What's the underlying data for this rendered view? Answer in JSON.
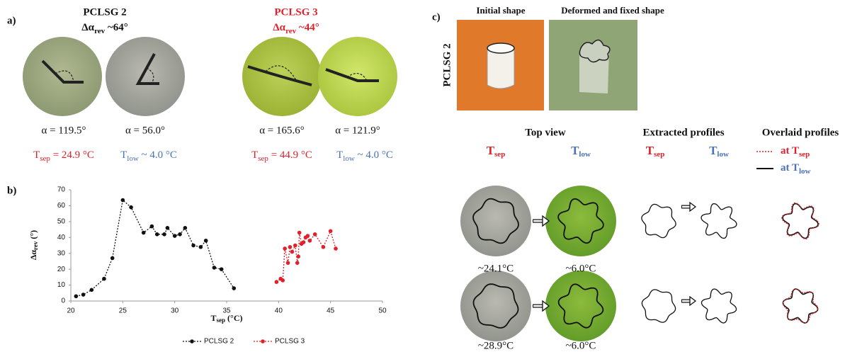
{
  "panel_a": {
    "label": "a)",
    "samples": [
      {
        "name": "PCLSG 2",
        "delta": {
          "main": "Δα",
          "sub": "rev",
          "rest": " ~64°"
        },
        "alpha_sep": "α = 119.5°",
        "alpha_low": "α = 56.0°",
        "t_sep": {
          "main": "T",
          "sub": "sep",
          "rest": " = 24.9 °C"
        },
        "t_low": {
          "main": "T",
          "sub": "low",
          "rest": " ~ 4.0 °C"
        }
      },
      {
        "name": "PCLSG 3",
        "delta": {
          "main": "Δα",
          "sub": "rev",
          "rest": " ~44°"
        },
        "alpha_sep": "α = 165.6°",
        "alpha_low": "α =  121.9°",
        "t_sep": {
          "main": "T",
          "sub": "sep",
          "rest": " = 44.9 °C"
        },
        "t_low": {
          "main": "T",
          "sub": "low",
          "rest": " ~ 4.0 °C"
        }
      }
    ]
  },
  "chart_data": {
    "type": "scatter",
    "label": "b)",
    "x_label": {
      "main": "T",
      "sub": "sep",
      "rest": " (°C)"
    },
    "y_label": {
      "main": "Δα",
      "sub": "rev",
      "rest": " (°)"
    },
    "xlim": [
      20,
      50
    ],
    "xticks": [
      20,
      25,
      30,
      35,
      40,
      45,
      50
    ],
    "ylim": [
      0,
      70
    ],
    "yticks": [
      0,
      10,
      20,
      30,
      40,
      50,
      60,
      70
    ],
    "grid": false,
    "legend": "bottom",
    "series": [
      {
        "name": "PCLSG 2",
        "color": "#111111",
        "x": [
          20.5,
          21.2,
          22,
          23.2,
          24,
          25,
          25.8,
          27,
          27.8,
          28.3,
          29,
          29.3,
          30,
          30.5,
          31,
          31.8,
          32.5,
          33,
          33.8,
          34.5,
          35.7
        ],
        "values": [
          3,
          4,
          7,
          14,
          27,
          63.5,
          59,
          43,
          47,
          42,
          42,
          46,
          41,
          42,
          46,
          35,
          34,
          38,
          21,
          20,
          8
        ]
      },
      {
        "name": "PCLSG 3",
        "color": "#e0202a",
        "x": [
          39.8,
          40.2,
          40.4,
          40.6,
          40.9,
          41.1,
          41.3,
          41.6,
          41.8,
          41.9,
          42,
          42.2,
          42.4,
          42.6,
          42.8,
          43,
          43.5,
          44.3,
          45,
          45.5
        ],
        "values": [
          12,
          14,
          13,
          33,
          24,
          34,
          31,
          35,
          24,
          28,
          43,
          36,
          37,
          40,
          41,
          38,
          42,
          34,
          44,
          33
        ]
      }
    ]
  },
  "panel_c": {
    "label": "c)",
    "initial": "Initial shape",
    "deformed": "Deformed and fixed shape",
    "sample": "PCLSG 2",
    "top_view": "Top view",
    "extracted": "Extracted profiles",
    "overlaid": "Overlaid profiles",
    "t_sep": {
      "main": "T",
      "sub": "sep"
    },
    "t_low": {
      "main": "T",
      "sub": "low"
    },
    "at_sep": {
      "main": "at T",
      "sub": "sep"
    },
    "at_low": {
      "main": "at T",
      "sub": "low"
    },
    "rows": [
      {
        "sep": "~24.1°C",
        "low": "~6.0°C"
      },
      {
        "sep": "~28.9°C",
        "low": "~6.0°C"
      }
    ]
  }
}
